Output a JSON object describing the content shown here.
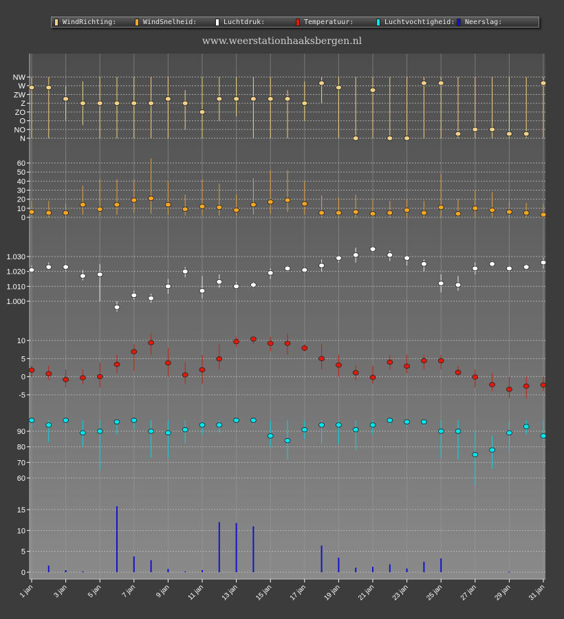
{
  "legend": [
    {
      "label": "WindRichting:",
      "color": "#f2d28a"
    },
    {
      "label": "WindSnelheid:",
      "color": "#f5a623"
    },
    {
      "label": "Luchtdruk:",
      "color": "#ffffff"
    },
    {
      "label": "Temperatuur:",
      "color": "#e01b0b"
    },
    {
      "label": "Luchtvochtigheid:",
      "color": "#00e5f0"
    },
    {
      "label": "Neerslag:",
      "color": "#1414c8"
    }
  ],
  "site_label": "www.weerstationhaaksbergen.nl",
  "x_ticks": [
    "1 jan",
    "3 jan",
    "5 jan",
    "7 jan",
    "9 jan",
    "11 jan",
    "13 jan",
    "15 jan",
    "17 jan",
    "19 jan",
    "21 jan",
    "23 jan",
    "25 jan",
    "27 jan",
    "29 jan",
    "31 jan"
  ],
  "chart_data": [
    {
      "type": "scatter",
      "name": "WindRichting",
      "color": "#f2d28a",
      "line_color": "#f0d080",
      "y_ticks": [
        "N",
        "NO",
        "O",
        "ZO",
        "Z",
        "ZW",
        "W",
        "NW"
      ],
      "ylim": [
        0,
        7
      ],
      "values": [
        5.8,
        5.8,
        4.5,
        4.0,
        4.0,
        4.0,
        4.0,
        4.0,
        4.5,
        4.0,
        3.0,
        4.5,
        4.5,
        4.5,
        4.5,
        4.5,
        4.0,
        6.3,
        5.8,
        0.0,
        5.5,
        0.0,
        0.0,
        6.3,
        6.3,
        0.5,
        1.0,
        1.0,
        0.5,
        0.5,
        6.3
      ],
      "low": [
        0,
        0,
        2,
        1.5,
        0,
        0,
        0,
        0,
        0,
        1,
        0,
        2,
        2.5,
        0,
        0,
        0,
        2,
        4,
        0,
        0,
        0,
        0,
        0,
        0,
        0,
        0,
        0,
        0,
        0,
        0,
        0
      ],
      "high": [
        7,
        7,
        6,
        6.5,
        7,
        7,
        7,
        7,
        7,
        5.5,
        7,
        7,
        7,
        7,
        7,
        5.5,
        6.5,
        7,
        7,
        7,
        7,
        7,
        7,
        7,
        7,
        7,
        7,
        7,
        7,
        7,
        7
      ]
    },
    {
      "type": "scatter",
      "name": "WindSnelheid",
      "color": "#f5a623",
      "line_color": "#e0a040",
      "y_ticks": [
        0,
        10,
        20,
        30,
        40,
        50,
        60
      ],
      "ylim": [
        -1,
        68
      ],
      "values": [
        6,
        5,
        5,
        14,
        9,
        14,
        19,
        21,
        14,
        9,
        12,
        11,
        8,
        14,
        17,
        19,
        15,
        5,
        5,
        6,
        4,
        5,
        8,
        5,
        11,
        4,
        10,
        8,
        6,
        5,
        3
      ],
      "low": [
        0,
        0,
        0,
        3,
        2,
        3,
        5,
        4,
        3,
        2,
        2,
        2,
        2,
        3,
        4,
        6,
        3,
        0,
        0,
        0,
        0,
        0,
        0,
        0,
        0,
        0,
        0,
        0,
        0,
        0,
        0
      ],
      "high": [
        18,
        18,
        15,
        35,
        42,
        42,
        42,
        65,
        40,
        25,
        42,
        37,
        25,
        43,
        52,
        52,
        40,
        24,
        22,
        25,
        20,
        18,
        20,
        18,
        48,
        20,
        30,
        28,
        18,
        16,
        15
      ]
    },
    {
      "type": "scatter",
      "name": "Luchtdruk",
      "color": "#ffffff",
      "line_color": "#e8e8e8",
      "y_ticks": [
        "1.000",
        "1.010",
        "1.020",
        "1.030"
      ],
      "ylim": [
        990,
        1040
      ],
      "values": [
        1021,
        1023,
        1023,
        1017,
        1018,
        996,
        1004,
        1002,
        1010,
        1020,
        1007,
        1013,
        1010,
        1011,
        1019,
        1022,
        1021,
        1024,
        1029,
        1031,
        1035,
        1031,
        1029,
        1025,
        1012,
        1011,
        1022,
        1025,
        1022,
        1023,
        1026
      ],
      "low": [
        1019,
        1021,
        1020,
        1014,
        1000,
        993,
        1001,
        999,
        1005,
        1016,
        1002,
        1009,
        1008,
        1009,
        1015,
        1020,
        1019,
        1020,
        1026,
        1026,
        1033,
        1027,
        1024,
        1020,
        1006,
        1007,
        1018,
        1023,
        1020,
        1021,
        1022
      ],
      "high": [
        1024,
        1026,
        1025,
        1021,
        1025,
        1000,
        1007,
        1005,
        1015,
        1023,
        1017,
        1018,
        1013,
        1013,
        1022,
        1024,
        1023,
        1028,
        1031,
        1036,
        1037,
        1034,
        1031,
        1028,
        1018,
        1017,
        1026,
        1027,
        1024,
        1025,
        1029
      ]
    },
    {
      "type": "scatter",
      "name": "Temperatuur",
      "color": "#e01b0b",
      "line_color": "#c82010",
      "y_ticks": [
        -5,
        0,
        5,
        10
      ],
      "ylim": [
        -8,
        13.5
      ],
      "values": [
        1.8,
        0.8,
        -0.8,
        -0.3,
        0,
        3.4,
        6.9,
        9.4,
        3.8,
        0.5,
        1.9,
        4.9,
        9.7,
        10.4,
        9.2,
        9.2,
        7.9,
        5,
        3.2,
        1.1,
        -0.2,
        4,
        2.9,
        4.4,
        4.4,
        1.2,
        -0.1,
        -2.2,
        -3.5,
        -2.6,
        -2.3
      ],
      "low": [
        0,
        -1,
        -3,
        -2,
        -3,
        1,
        1.5,
        6,
        0,
        -2,
        -2,
        2,
        8,
        9,
        7,
        6,
        7,
        2,
        0,
        -1,
        -2,
        2,
        1,
        2,
        2,
        0,
        -3,
        -4,
        -6,
        -6,
        -4
      ],
      "high": [
        3,
        3,
        2,
        2,
        4,
        6,
        9,
        12,
        8,
        4,
        6,
        9,
        11,
        11,
        11,
        12,
        9,
        9,
        6,
        3,
        3,
        6,
        6,
        6,
        6,
        3,
        2,
        1,
        0,
        0,
        0
      ]
    },
    {
      "type": "scatter",
      "name": "Luchtvochtigheid",
      "color": "#00e5f0",
      "line_color": "#00d8e8",
      "y_ticks": [
        60,
        70,
        80,
        90
      ],
      "ylim": [
        53,
        104
      ],
      "values": [
        97,
        94,
        97,
        89,
        90,
        96,
        97,
        90,
        89,
        91,
        94,
        94,
        97,
        97,
        87,
        84,
        91,
        94,
        94,
        91,
        94,
        97,
        96,
        96,
        90,
        90,
        75,
        78,
        89,
        93,
        87
      ],
      "low": [
        92,
        83,
        93,
        80,
        65,
        88,
        91,
        73,
        73,
        82,
        88,
        89,
        96,
        94,
        80,
        72,
        85,
        82,
        82,
        78,
        88,
        94,
        93,
        93,
        73,
        72,
        55,
        66,
        77,
        88,
        84
      ],
      "high": [
        97,
        97,
        97,
        97,
        97,
        97,
        97,
        97,
        97,
        97,
        96,
        97,
        97,
        97,
        97,
        97,
        97,
        97,
        97,
        97,
        97,
        97,
        97,
        97,
        97,
        97,
        90,
        87,
        97,
        97,
        97
      ]
    },
    {
      "type": "bar",
      "name": "Neerslag",
      "color": "#1414c8",
      "y_ticks": [
        0,
        5,
        10,
        15
      ],
      "ylim": [
        -1,
        18
      ],
      "values": [
        0,
        1.6,
        0.5,
        0.2,
        0,
        15.8,
        3.8,
        2.9,
        0.8,
        0.2,
        0.5,
        12,
        11.8,
        11,
        0,
        0,
        0,
        6.4,
        3.5,
        1.1,
        1.3,
        1.9,
        0.9,
        2.5,
        3.3,
        0,
        0,
        0,
        0.1,
        0,
        0
      ]
    }
  ]
}
